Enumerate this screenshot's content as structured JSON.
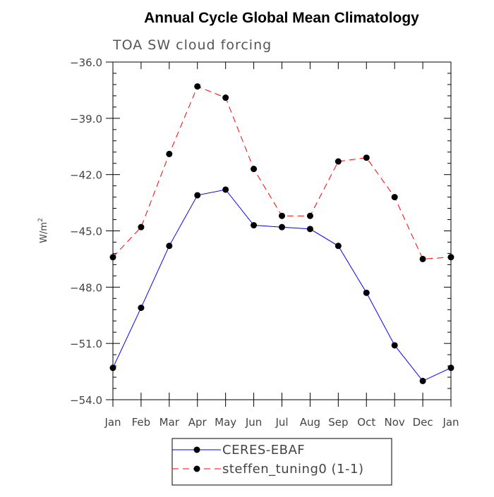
{
  "chart_data": {
    "type": "line",
    "title": "Annual Cycle Global Mean Climatology",
    "subtitle": "TOA SW cloud forcing",
    "xlabel": "",
    "ylabel": "W/m",
    "ylabel_sup": "2",
    "categories": [
      "Jan",
      "Feb",
      "Mar",
      "Apr",
      "May",
      "Jun",
      "Jul",
      "Aug",
      "Sep",
      "Oct",
      "Nov",
      "Dec",
      "Jan"
    ],
    "ylim": [
      -54.0,
      -36.0
    ],
    "yticks": [
      -36.0,
      -39.0,
      -42.0,
      -45.0,
      -48.0,
      -51.0,
      -54.0
    ],
    "ytick_labels": [
      "-36.0",
      "-39.0",
      "-42.0",
      "-45.0",
      "-48.0",
      "-51.0",
      "-54.0"
    ],
    "grid": false,
    "legend_position": "bottom-center",
    "series": [
      {
        "name": "CERES-EBAF",
        "color": "#0000ff",
        "dash": "solid",
        "marker": "filled-circle",
        "values": [
          -52.3,
          -49.1,
          -45.8,
          -43.1,
          -42.8,
          -44.7,
          -44.8,
          -44.9,
          -45.8,
          -48.3,
          -51.1,
          -53.0,
          -52.3
        ]
      },
      {
        "name": "steffen_tuning0 (1-1)",
        "color": "#ff0000",
        "dash": "dashed",
        "marker": "filled-circle",
        "values": [
          -46.4,
          -44.8,
          -40.9,
          -37.3,
          -37.9,
          -41.7,
          -44.2,
          -44.2,
          -41.3,
          -41.1,
          -43.2,
          -46.5,
          -46.4
        ]
      }
    ]
  }
}
